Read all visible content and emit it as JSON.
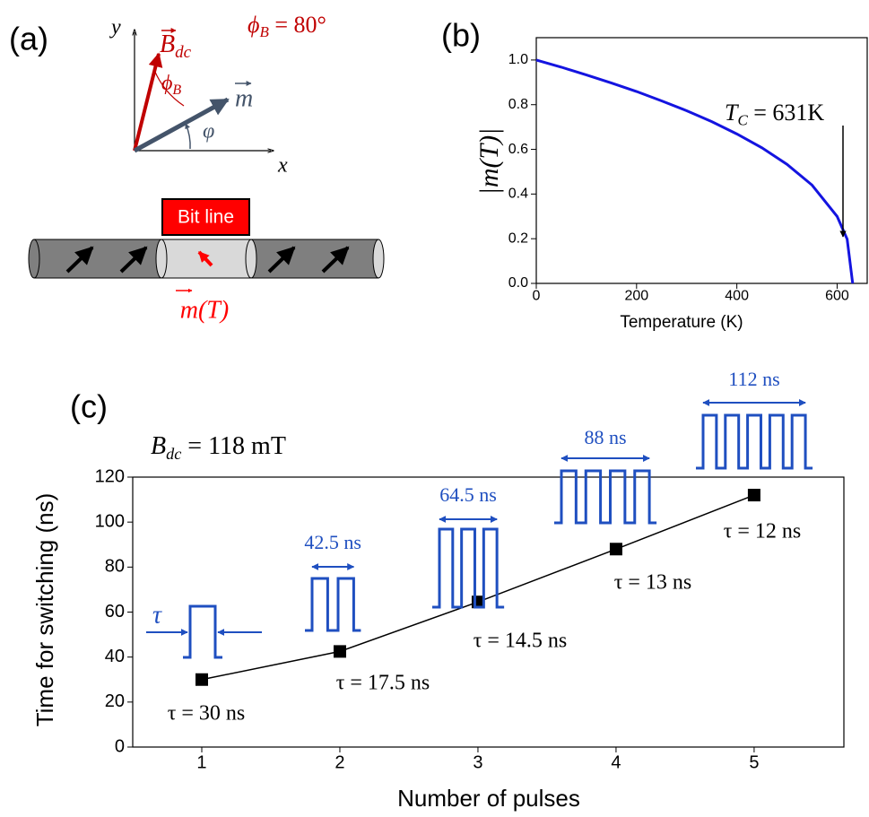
{
  "diagram": {
    "panel_label": "(a)",
    "axis_y": "y",
    "axis_x": "x",
    "field": {
      "symbol": "B",
      "sub": "dc"
    },
    "angle_b": {
      "symbol": "ϕ",
      "sub": "B"
    },
    "moment": "m",
    "angle_m": "φ",
    "setting": {
      "symbol": "ϕ",
      "sub": "B",
      "rest": " = 80°"
    },
    "bit_line": "Bit line",
    "moment_t": "m(T)"
  },
  "chart_data": [
    {
      "type": "line",
      "panel_label": "(b)",
      "xlabel": "Temperature (K)",
      "ylabel": "|m(T)|",
      "x": [
        0,
        50,
        100,
        150,
        200,
        250,
        300,
        350,
        400,
        450,
        500,
        550,
        600,
        620,
        631
      ],
      "values": [
        1.0,
        0.968,
        0.933,
        0.897,
        0.859,
        0.817,
        0.773,
        0.724,
        0.669,
        0.607,
        0.533,
        0.44,
        0.3,
        0.198,
        0
      ],
      "color": "#1414e0",
      "xlim": [
        0,
        660
      ],
      "ylim": [
        0,
        1.1
      ],
      "xticks": [
        0,
        200,
        400,
        600
      ],
      "yticks": [
        {
          "value": 0,
          "label": "0.0"
        },
        0.2,
        0.4,
        0.6,
        0.8,
        {
          "value": 1,
          "label": "1.0"
        }
      ],
      "annotation": {
        "symbol": "T",
        "sub": "C",
        "rest": " = 631K"
      }
    },
    {
      "type": "line",
      "panel_label": "(c)",
      "xlabel": "Number of pulses",
      "ylabel": "Time for switching (ns)",
      "x": [
        1,
        2,
        3,
        4,
        5
      ],
      "values": [
        30,
        42.5,
        64.5,
        88,
        112
      ],
      "color": "#000000",
      "marker": "square",
      "xlim": [
        0.5,
        5.65
      ],
      "ylim": [
        0,
        120
      ],
      "xticks": [
        1,
        2,
        3,
        4,
        5
      ],
      "yticks": [
        0,
        20,
        40,
        60,
        80,
        100,
        120
      ],
      "field_label": {
        "symbol": "B",
        "sub": "dc",
        "rest": " = 118 mT"
      },
      "pulse_width_symbol": "τ",
      "pulse_labels": [
        "τ = 30 ns",
        "τ = 17.5 ns",
        "τ = 14.5 ns",
        "τ = 13 ns",
        "τ = 12 ns"
      ],
      "train_labels": [
        "42.5 ns",
        "64.5 ns",
        "88 ns",
        "112 ns"
      ],
      "pulse_color": "#1f4fc0"
    }
  ]
}
